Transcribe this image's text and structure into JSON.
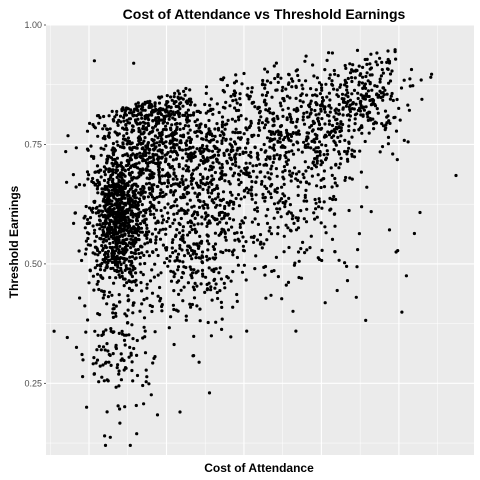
{
  "chart_data": {
    "type": "scatter",
    "title": "Cost of Attendance vs Threshold Earnings",
    "xlabel": "Cost of Attendance",
    "ylabel": "Threshold Earnings",
    "x_ticks_labeled": false,
    "ylim": [
      0.1,
      1.0
    ],
    "xlim": [
      0,
      1
    ],
    "y_ticks": [
      0.25,
      0.5,
      0.75,
      1.0
    ],
    "y_tick_labels": [
      "0.25",
      "0.50",
      "0.75",
      "1.00"
    ],
    "grid": true,
    "background": "#ebebeb",
    "gridline_color": "#ffffff",
    "point_color": "#000000",
    "outliers": [
      {
        "x": 0.046,
        "y": 0.735
      },
      {
        "x": 0.113,
        "y": 0.925
      },
      {
        "x": 0.205,
        "y": 0.92
      },
      {
        "x": 0.958,
        "y": 0.685
      },
      {
        "x": 0.842,
        "y": 0.475
      },
      {
        "x": 0.725,
        "y": 0.43
      },
      {
        "x": 0.139,
        "y": 0.12
      },
      {
        "x": 0.197,
        "y": 0.12
      },
      {
        "x": 0.137,
        "y": 0.14
      },
      {
        "x": 0.382,
        "y": 0.23
      },
      {
        "x": 0.313,
        "y": 0.19
      }
    ],
    "clusters": [
      {
        "cx": 0.17,
        "cy": 0.59,
        "sx": 0.035,
        "sy": 0.07,
        "n": 900
      },
      {
        "cx": 0.24,
        "cy": 0.76,
        "sx": 0.06,
        "sy": 0.07,
        "n": 500
      },
      {
        "cx": 0.33,
        "cy": 0.72,
        "sx": 0.08,
        "sy": 0.09,
        "n": 450
      },
      {
        "cx": 0.35,
        "cy": 0.52,
        "sx": 0.06,
        "sy": 0.08,
        "n": 300
      },
      {
        "cx": 0.5,
        "cy": 0.73,
        "sx": 0.1,
        "sy": 0.09,
        "n": 450
      },
      {
        "cx": 0.62,
        "cy": 0.8,
        "sx": 0.07,
        "sy": 0.06,
        "n": 300
      },
      {
        "cx": 0.75,
        "cy": 0.86,
        "sx": 0.05,
        "sy": 0.05,
        "n": 220
      },
      {
        "cx": 0.17,
        "cy": 0.33,
        "sx": 0.05,
        "sy": 0.08,
        "n": 150
      },
      {
        "cx": 0.6,
        "cy": 0.58,
        "sx": 0.1,
        "sy": 0.08,
        "n": 120
      }
    ]
  }
}
